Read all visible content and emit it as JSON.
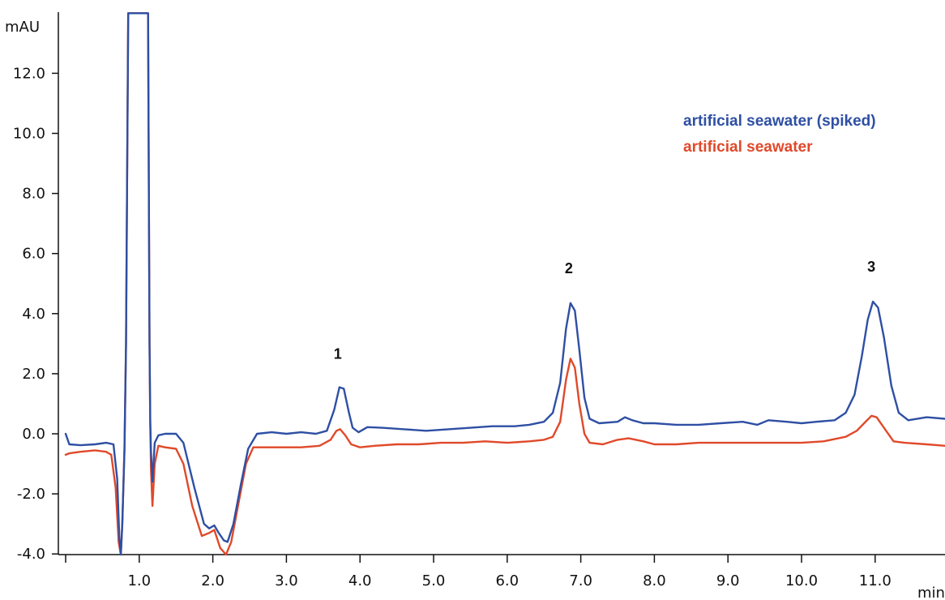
{
  "chart_data": {
    "type": "line",
    "title": "",
    "xlabel": "min",
    "ylabel": "mAU",
    "xlim": [
      0,
      12
    ],
    "ylim": [
      -4.2,
      14
    ],
    "x_ticks": [
      "1.0",
      "2.0",
      "3.0",
      "4.0",
      "5.0",
      "6.0",
      "7.0",
      "8.0",
      "9.0",
      "10.0",
      "11.0"
    ],
    "y_ticks": [
      "-4.0",
      "-2.0",
      "0.0",
      "2.0",
      "4.0",
      "6.0",
      "8.0",
      "10.0",
      "12.0"
    ],
    "grid": false,
    "legend_position": "top-right",
    "series": [
      {
        "name": "artificial seawater (spiked)",
        "color": "#2e4fa3",
        "points": [
          [
            0.0,
            0.0
          ],
          [
            0.05,
            -0.35
          ],
          [
            0.2,
            -0.38
          ],
          [
            0.4,
            -0.35
          ],
          [
            0.55,
            -0.3
          ],
          [
            0.65,
            -0.35
          ],
          [
            0.7,
            -1.5
          ],
          [
            0.73,
            -3.5
          ],
          [
            0.75,
            -4.3
          ],
          [
            0.77,
            -3.0
          ],
          [
            0.8,
            -0.5
          ],
          [
            0.82,
            3.0
          ],
          [
            0.85,
            14.0
          ],
          [
            1.12,
            14.0
          ],
          [
            1.14,
            3.0
          ],
          [
            1.15,
            0.4
          ],
          [
            1.16,
            -0.6
          ],
          [
            1.18,
            -1.6
          ],
          [
            1.21,
            -0.3
          ],
          [
            1.26,
            -0.05
          ],
          [
            1.35,
            0.0
          ],
          [
            1.5,
            0.0
          ],
          [
            1.6,
            -0.3
          ],
          [
            1.75,
            -1.8
          ],
          [
            1.88,
            -3.0
          ],
          [
            1.95,
            -3.15
          ],
          [
            2.02,
            -3.05
          ],
          [
            2.08,
            -3.3
          ],
          [
            2.15,
            -3.55
          ],
          [
            2.2,
            -3.6
          ],
          [
            2.28,
            -3.0
          ],
          [
            2.38,
            -1.7
          ],
          [
            2.48,
            -0.5
          ],
          [
            2.6,
            0.0
          ],
          [
            2.8,
            0.05
          ],
          [
            3.0,
            0.0
          ],
          [
            3.2,
            0.05
          ],
          [
            3.4,
            0.0
          ],
          [
            3.55,
            0.1
          ],
          [
            3.65,
            0.8
          ],
          [
            3.72,
            1.55
          ],
          [
            3.78,
            1.5
          ],
          [
            3.85,
            0.7
          ],
          [
            3.9,
            0.2
          ],
          [
            3.98,
            0.05
          ],
          [
            4.1,
            0.22
          ],
          [
            4.3,
            0.2
          ],
          [
            4.6,
            0.15
          ],
          [
            4.9,
            0.1
          ],
          [
            5.2,
            0.15
          ],
          [
            5.5,
            0.2
          ],
          [
            5.8,
            0.25
          ],
          [
            6.1,
            0.25
          ],
          [
            6.3,
            0.3
          ],
          [
            6.5,
            0.4
          ],
          [
            6.62,
            0.7
          ],
          [
            6.72,
            1.7
          ],
          [
            6.8,
            3.5
          ],
          [
            6.86,
            4.35
          ],
          [
            6.92,
            4.1
          ],
          [
            6.98,
            2.8
          ],
          [
            7.05,
            1.2
          ],
          [
            7.12,
            0.5
          ],
          [
            7.25,
            0.35
          ],
          [
            7.5,
            0.4
          ],
          [
            7.6,
            0.55
          ],
          [
            7.7,
            0.45
          ],
          [
            7.85,
            0.35
          ],
          [
            8.0,
            0.35
          ],
          [
            8.3,
            0.3
          ],
          [
            8.6,
            0.3
          ],
          [
            8.9,
            0.35
          ],
          [
            9.2,
            0.4
          ],
          [
            9.4,
            0.3
          ],
          [
            9.55,
            0.45
          ],
          [
            9.8,
            0.4
          ],
          [
            10.0,
            0.35
          ],
          [
            10.2,
            0.4
          ],
          [
            10.45,
            0.45
          ],
          [
            10.6,
            0.7
          ],
          [
            10.72,
            1.3
          ],
          [
            10.82,
            2.6
          ],
          [
            10.9,
            3.8
          ],
          [
            10.97,
            4.4
          ],
          [
            11.04,
            4.2
          ],
          [
            11.12,
            3.2
          ],
          [
            11.22,
            1.6
          ],
          [
            11.32,
            0.7
          ],
          [
            11.45,
            0.45
          ],
          [
            11.7,
            0.55
          ],
          [
            11.95,
            0.5
          ]
        ]
      },
      {
        "name": "artificial seawater",
        "color": "#e0492a",
        "points": [
          [
            0.0,
            -0.7
          ],
          [
            0.05,
            -0.65
          ],
          [
            0.2,
            -0.6
          ],
          [
            0.4,
            -0.55
          ],
          [
            0.55,
            -0.6
          ],
          [
            0.62,
            -0.7
          ],
          [
            0.68,
            -1.8
          ],
          [
            0.72,
            -3.6
          ],
          [
            0.75,
            -4.3
          ],
          [
            0.77,
            -3.0
          ],
          [
            0.8,
            -0.5
          ],
          [
            0.82,
            3.0
          ],
          [
            0.85,
            14.0
          ],
          [
            1.12,
            14.0
          ],
          [
            1.14,
            3.0
          ],
          [
            1.15,
            0.3
          ],
          [
            1.16,
            -1.2
          ],
          [
            1.18,
            -2.4
          ],
          [
            1.21,
            -1.0
          ],
          [
            1.26,
            -0.4
          ],
          [
            1.35,
            -0.45
          ],
          [
            1.5,
            -0.5
          ],
          [
            1.6,
            -1.0
          ],
          [
            1.72,
            -2.4
          ],
          [
            1.85,
            -3.4
          ],
          [
            1.95,
            -3.3
          ],
          [
            2.02,
            -3.2
          ],
          [
            2.1,
            -3.8
          ],
          [
            2.18,
            -4.1
          ],
          [
            2.25,
            -3.6
          ],
          [
            2.35,
            -2.3
          ],
          [
            2.45,
            -1.0
          ],
          [
            2.55,
            -0.45
          ],
          [
            2.8,
            -0.45
          ],
          [
            3.0,
            -0.45
          ],
          [
            3.2,
            -0.45
          ],
          [
            3.45,
            -0.4
          ],
          [
            3.6,
            -0.2
          ],
          [
            3.68,
            0.1
          ],
          [
            3.73,
            0.15
          ],
          [
            3.8,
            -0.05
          ],
          [
            3.88,
            -0.35
          ],
          [
            4.0,
            -0.45
          ],
          [
            4.2,
            -0.4
          ],
          [
            4.5,
            -0.35
          ],
          [
            4.8,
            -0.35
          ],
          [
            5.1,
            -0.3
          ],
          [
            5.4,
            -0.3
          ],
          [
            5.7,
            -0.25
          ],
          [
            6.0,
            -0.3
          ],
          [
            6.3,
            -0.25
          ],
          [
            6.5,
            -0.2
          ],
          [
            6.62,
            -0.1
          ],
          [
            6.72,
            0.4
          ],
          [
            6.8,
            1.8
          ],
          [
            6.86,
            2.5
          ],
          [
            6.92,
            2.2
          ],
          [
            6.98,
            1.0
          ],
          [
            7.05,
            0.0
          ],
          [
            7.12,
            -0.3
          ],
          [
            7.3,
            -0.35
          ],
          [
            7.5,
            -0.2
          ],
          [
            7.65,
            -0.15
          ],
          [
            7.85,
            -0.25
          ],
          [
            8.0,
            -0.35
          ],
          [
            8.3,
            -0.35
          ],
          [
            8.6,
            -0.3
          ],
          [
            9.0,
            -0.3
          ],
          [
            9.3,
            -0.3
          ],
          [
            9.7,
            -0.3
          ],
          [
            10.0,
            -0.3
          ],
          [
            10.3,
            -0.25
          ],
          [
            10.6,
            -0.1
          ],
          [
            10.75,
            0.1
          ],
          [
            10.85,
            0.35
          ],
          [
            10.95,
            0.6
          ],
          [
            11.02,
            0.55
          ],
          [
            11.12,
            0.2
          ],
          [
            11.25,
            -0.25
          ],
          [
            11.4,
            -0.3
          ],
          [
            11.7,
            -0.35
          ],
          [
            11.95,
            -0.4
          ]
        ]
      }
    ],
    "annotations": [
      {
        "label": "1",
        "x": 3.72,
        "y": 2.5
      },
      {
        "label": "2",
        "x": 6.86,
        "y": 5.35
      },
      {
        "label": "3",
        "x": 10.97,
        "y": 5.4
      }
    ]
  }
}
